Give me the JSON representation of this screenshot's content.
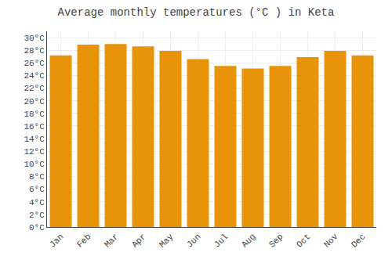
{
  "chart_data": {
    "type": "bar",
    "title": "Average monthly temperatures (°C ) in Keta",
    "categories": [
      "Jan",
      "Feb",
      "Mar",
      "Apr",
      "May",
      "Jun",
      "Jul",
      "Aug",
      "Sep",
      "Oct",
      "Nov",
      "Dec"
    ],
    "values": [
      27.2,
      28.9,
      29.0,
      28.6,
      27.9,
      26.6,
      25.5,
      25.1,
      25.5,
      26.9,
      27.9,
      27.2
    ],
    "color": "#E8940A",
    "ylim": [
      0,
      31
    ],
    "yticks": [
      {
        "value": 0,
        "label": "0°C"
      },
      {
        "value": 2,
        "label": "2°C"
      },
      {
        "value": 4,
        "label": "4°C"
      },
      {
        "value": 6,
        "label": "6°C"
      },
      {
        "value": 8,
        "label": "8°C"
      },
      {
        "value": 10,
        "label": "10°C"
      },
      {
        "value": 12,
        "label": "12°C"
      },
      {
        "value": 14,
        "label": "14°C"
      },
      {
        "value": 16,
        "label": "16°C"
      },
      {
        "value": 18,
        "label": "18°C"
      },
      {
        "value": 20,
        "label": "20°C"
      },
      {
        "value": 22,
        "label": "22°C"
      },
      {
        "value": 24,
        "label": "24°C"
      },
      {
        "value": 26,
        "label": "26°C"
      },
      {
        "value": 28,
        "label": "28°C"
      },
      {
        "value": 30,
        "label": "30°C"
      }
    ],
    "grid": true
  }
}
